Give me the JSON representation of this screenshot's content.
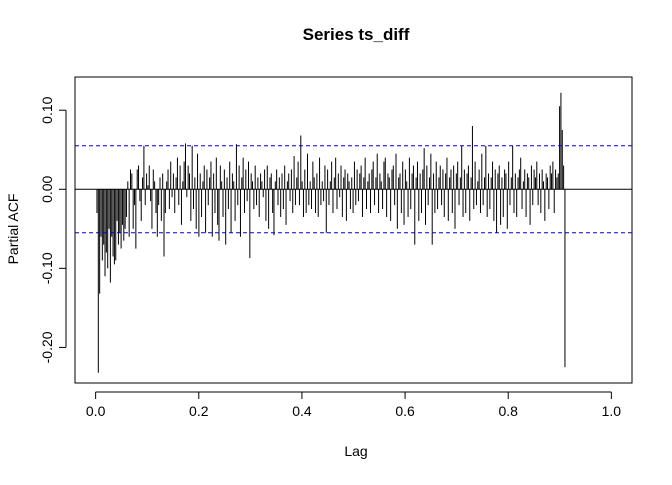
{
  "chart_data": {
    "type": "bar",
    "title": "Series  ts_diff",
    "xlabel": "Lag",
    "ylabel": "Partial ACF",
    "xlim": [
      -0.04,
      1.04
    ],
    "ylim": [
      -0.245,
      0.142
    ],
    "x_ticks": [
      0.0,
      0.2,
      0.4,
      0.6,
      0.8,
      1.0
    ],
    "x_tick_labels": [
      "0.0",
      "0.2",
      "0.4",
      "0.6",
      "0.8",
      "1.0"
    ],
    "y_ticks": [
      -0.2,
      -0.1,
      0.0,
      0.1
    ],
    "y_tick_labels": [
      "-0.20",
      "-0.10",
      "0.00",
      "0.10"
    ],
    "confidence_bounds": [
      0.055,
      -0.055
    ],
    "confidence_line_color": "#0000CD",
    "bar_color": "#000000",
    "lag_start": 0.0026,
    "lag_step": 0.0026,
    "values": [
      -0.03,
      -0.232,
      -0.132,
      -0.06,
      -0.09,
      -0.07,
      -0.11,
      -0.08,
      -0.1,
      -0.05,
      -0.118,
      -0.06,
      -0.085,
      -0.095,
      -0.09,
      -0.04,
      -0.07,
      -0.055,
      -0.075,
      -0.045,
      -0.065,
      -0.05,
      -0.035,
      0.01,
      -0.06,
      0.025,
      0.02,
      -0.05,
      -0.02,
      -0.075,
      0.025,
      0.03,
      -0.015,
      -0.04,
      0.015,
      0.055,
      -0.02,
      0.02,
      0.005,
      0.03,
      -0.015,
      -0.05,
      0.025,
      0.01,
      -0.03,
      -0.06,
      -0.02,
      0.015,
      -0.04,
      0.02,
      -0.085,
      -0.03,
      0.01,
      0.025,
      -0.025,
      0.035,
      -0.01,
      0.02,
      -0.03,
      0.015,
      0.04,
      -0.02,
      0.03,
      -0.045,
      0.01,
      0.035,
      0.058,
      -0.01,
      0.03,
      0.02,
      -0.04,
      0.055,
      -0.025,
      0.015,
      -0.05,
      0.045,
      -0.06,
      0.02,
      -0.035,
      0.01,
      0.03,
      -0.055,
      0.025,
      -0.02,
      0.015,
      0.035,
      -0.06,
      0.02,
      -0.03,
      0.04,
      -0.045,
      -0.065,
      0.03,
      0.01,
      -0.035,
      0.025,
      -0.07,
      0.015,
      -0.025,
      0.035,
      -0.055,
      0.02,
      0.01,
      -0.04,
      0.057,
      -0.02,
      0.03,
      -0.06,
      0.015,
      0.04,
      -0.03,
      0.025,
      -0.015,
      0.035,
      -0.087,
      0.02,
      0.01,
      -0.025,
      0.03,
      -0.02,
      0.015,
      -0.035,
      0.02,
      0.01,
      -0.01,
      0.025,
      -0.04,
      0.03,
      -0.05,
      0.015,
      0.02,
      -0.03,
      -0.058,
      0.01,
      0.025,
      -0.02,
      0.015,
      -0.035,
      0.02,
      -0.025,
      0.03,
      -0.045,
      0.01,
      0.02,
      -0.015,
      0.025,
      -0.03,
      0.042,
      -0.02,
      0.015,
      0.035,
      -0.02,
      0.068,
      0.01,
      -0.035,
      0.025,
      -0.03,
      0.045,
      -0.02,
      0.01,
      -0.025,
      0.035,
      0.015,
      -0.03,
      0.02,
      -0.035,
      0.04,
      -0.02,
      0.01,
      -0.015,
      0.03,
      -0.055,
      0.025,
      -0.02,
      0.01,
      0.035,
      -0.03,
      0.015,
      0.04,
      -0.025,
      0.02,
      -0.01,
      0.03,
      -0.035,
      0.015,
      0.025,
      -0.04,
      0.02,
      0.01,
      -0.025,
      0.015,
      -0.03,
      0.035,
      -0.02,
      0.025,
      -0.015,
      0.02,
      0.03,
      -0.035,
      0.015,
      0.04,
      -0.025,
      0.01,
      0.02,
      -0.03,
      0.025,
      0.035,
      -0.02,
      0.015,
      0.045,
      -0.03,
      0.02,
      0.01,
      -0.025,
      0.035,
      0.04,
      -0.035,
      0.02,
      0.015,
      -0.04,
      0.025,
      0.03,
      -0.02,
      0.045,
      -0.05,
      0.015,
      0.02,
      -0.03,
      0.035,
      -0.045,
      0.025,
      0.01,
      -0.035,
      0.04,
      -0.025,
      0.02,
      0.03,
      -0.07,
      0.015,
      0.035,
      -0.04,
      0.02,
      -0.03,
      0.025,
      0.052,
      -0.045,
      0.03,
      -0.02,
      0.015,
      0.045,
      -0.07,
      0.02,
      -0.03,
      0.035,
      -0.025,
      0.015,
      0.03,
      -0.02,
      0.025,
      -0.035,
      0.02,
      0.04,
      -0.04,
      0.015,
      0.025,
      -0.03,
      0.03,
      -0.05,
      0.02,
      0.035,
      -0.02,
      0.015,
      0.055,
      -0.035,
      0.025,
      -0.03,
      0.02,
      0.03,
      -0.04,
      0.015,
      0.08,
      -0.025,
      0.035,
      -0.02,
      0.01,
      0.025,
      -0.03,
      0.045,
      -0.02,
      0.015,
      0.055,
      -0.035,
      0.02,
      -0.025,
      0.015,
      0.035,
      -0.04,
      0.025,
      -0.055,
      0.02,
      0.03,
      -0.045,
      0.015,
      -0.035,
      0.025,
      0.02,
      -0.05,
      0.035,
      -0.02,
      0.015,
      0.055,
      -0.03,
      0.02,
      -0.035,
      0.015,
      0.025,
      0.04,
      -0.025,
      0.01,
      0.025,
      -0.035,
      0.02,
      0.015,
      -0.045,
      0.03,
      -0.02,
      0.025,
      0.015,
      0.035,
      -0.02,
      0.02,
      -0.03,
      0.025,
      0.01,
      -0.04,
      0.02,
      0.015,
      -0.025,
      0.03,
      0.02,
      0.035,
      -0.03,
      0.025,
      0.015,
      0.02,
      0.105,
      0.122,
      0.075,
      0.03,
      -0.225
    ]
  }
}
